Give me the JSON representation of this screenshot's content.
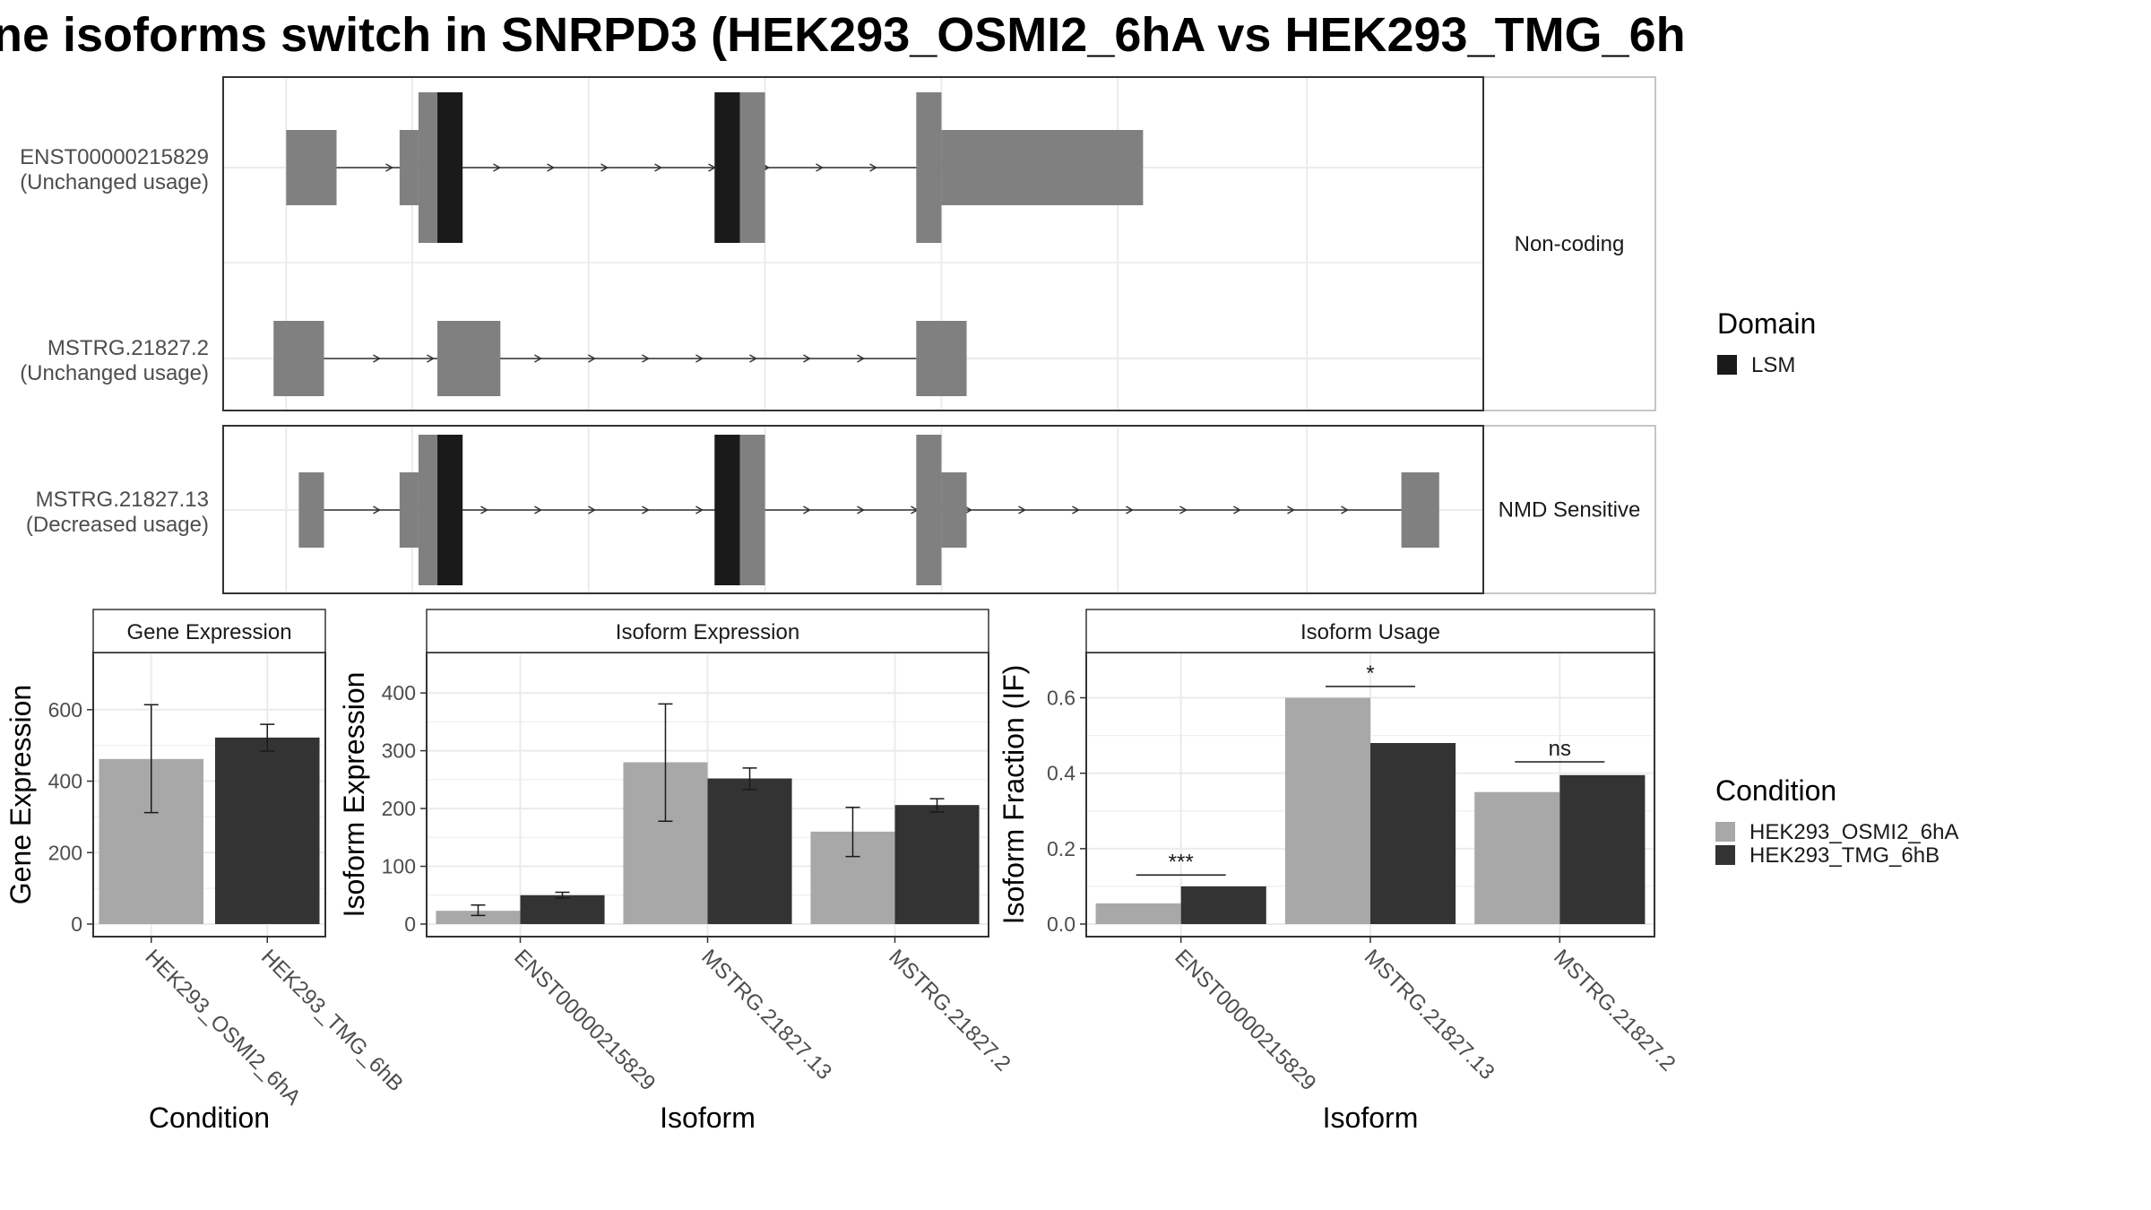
{
  "title": "ne isoforms switch in SNRPD3 (HEK293_OSMI2_6hA vs HEK293_TMG_6h",
  "colors": {
    "exon": "#808080",
    "lsm": "#1a1a1a",
    "cond_a": "#a8a8a8",
    "cond_b": "#333333",
    "grid": "#ebebeb",
    "strip_border": "#b3b3b3"
  },
  "isoform_tracks": {
    "facets": [
      {
        "label": "Non-coding"
      },
      {
        "label": "NMD Sensitive"
      }
    ],
    "isoforms": [
      {
        "id": "ENST00000215829",
        "usage_label": "(Unchanged usage)",
        "facet": 0,
        "exons": [
          [
            0.05,
            0.09,
            "thin"
          ],
          [
            0.14,
            0.155,
            "thin"
          ],
          [
            0.155,
            0.19,
            "thick"
          ],
          [
            0.39,
            0.43,
            "thick"
          ],
          [
            0.55,
            0.57,
            "thick"
          ],
          [
            0.57,
            0.73,
            "thin"
          ]
        ],
        "domains": [
          [
            0.17,
            0.19
          ],
          [
            0.39,
            0.41
          ]
        ]
      },
      {
        "id": "MSTRG.21827.2",
        "usage_label": "(Unchanged usage)",
        "facet": 0,
        "exons": [
          [
            0.04,
            0.08,
            "thin"
          ],
          [
            0.17,
            0.22,
            "thin"
          ],
          [
            0.55,
            0.59,
            "thin"
          ]
        ],
        "domains": []
      },
      {
        "id": "MSTRG.21827.13",
        "usage_label": "(Decreased usage)",
        "facet": 1,
        "exons": [
          [
            0.06,
            0.08,
            "thin"
          ],
          [
            0.14,
            0.155,
            "thin"
          ],
          [
            0.155,
            0.19,
            "thick"
          ],
          [
            0.39,
            0.43,
            "thick"
          ],
          [
            0.55,
            0.57,
            "thick"
          ],
          [
            0.57,
            0.59,
            "thin"
          ],
          [
            0.935,
            0.965,
            "thin"
          ]
        ],
        "domains": [
          [
            0.17,
            0.19
          ],
          [
            0.39,
            0.41
          ]
        ]
      }
    ]
  },
  "legend_domain": {
    "title": "Domain",
    "items": [
      {
        "label": "LSM",
        "color": "#1a1a1a"
      }
    ]
  },
  "legend_condition": {
    "title": "Condition",
    "items": [
      {
        "label": "HEK293_OSMI2_6hA",
        "color": "#a8a8a8"
      },
      {
        "label": "HEK293_TMG_6hB",
        "color": "#333333"
      }
    ]
  },
  "chart_data": [
    {
      "type": "bar",
      "strip": "Gene Expression",
      "xlabel": "Condition",
      "ylabel": "Gene Expression",
      "ylim": [
        0,
        760
      ],
      "yticks": [
        0,
        200,
        400,
        600
      ],
      "categories": [
        "HEK293_OSMI2_6hA",
        "HEK293_TMG_6hB"
      ],
      "values": [
        462,
        522
      ],
      "errors": [
        [
          312,
          614
        ],
        [
          484,
          559
        ]
      ],
      "colors": [
        "#a8a8a8",
        "#333333"
      ]
    },
    {
      "type": "bar",
      "strip": "Isoform Expression",
      "xlabel": "Isoform",
      "ylabel": "Isoform Expression",
      "ylim": [
        0,
        470
      ],
      "yticks": [
        0,
        100,
        200,
        300,
        400
      ],
      "categories": [
        "ENST00000215829",
        "MSTRG.21827.13",
        "MSTRG.21827.2"
      ],
      "series": [
        {
          "name": "HEK293_OSMI2_6hA",
          "values": [
            23,
            280,
            160
          ],
          "errors": [
            [
              15,
              33
            ],
            [
              178,
              381
            ],
            [
              117,
              202
            ]
          ]
        },
        {
          "name": "HEK293_TMG_6hB",
          "values": [
            50,
            252,
            206
          ],
          "errors": [
            [
              45,
              55
            ],
            [
              233,
              270
            ],
            [
              194,
              217
            ]
          ]
        }
      ]
    },
    {
      "type": "bar",
      "strip": "Isoform Usage",
      "xlabel": "Isoform",
      "ylabel": "Isoform Fraction (IF)",
      "ylim": [
        0,
        0.72
      ],
      "yticks": [
        0.0,
        0.2,
        0.4,
        0.6
      ],
      "tick_labels": [
        "0.0",
        "0.2",
        "0.4",
        "0.6"
      ],
      "categories": [
        "ENST00000215829",
        "MSTRG.21827.13",
        "MSTRG.21827.2"
      ],
      "series": [
        {
          "name": "HEK293_OSMI2_6hA",
          "values": [
            0.055,
            0.6,
            0.35
          ]
        },
        {
          "name": "HEK293_TMG_6hB",
          "values": [
            0.1,
            0.48,
            0.395
          ]
        }
      ],
      "significance": [
        {
          "label": "***",
          "y": 0.13
        },
        {
          "label": "*",
          "y": 0.63
        },
        {
          "label": "ns",
          "y": 0.43
        }
      ]
    }
  ]
}
